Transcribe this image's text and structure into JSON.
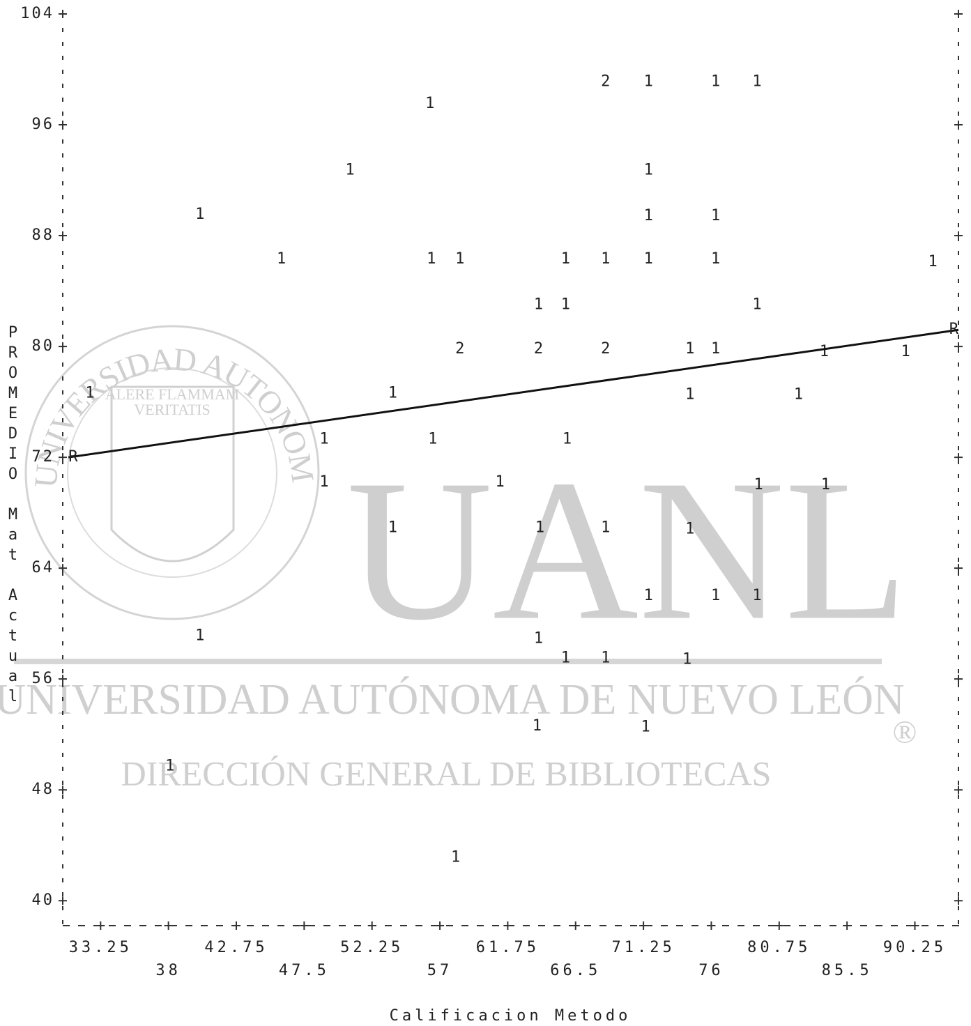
{
  "chart_data": {
    "type": "scatter",
    "x_label": "Calificacion Metodo",
    "y_label": "PROMEDIO Mat Actual",
    "xlim": [
      30.6,
      93.3
    ],
    "ylim": [
      38.2,
      104
    ],
    "xticks": [
      33.25,
      38,
      42.75,
      47.5,
      52.25,
      57,
      61.75,
      66.5,
      71.25,
      76,
      80.75,
      85.5,
      90.25
    ],
    "yticks": [
      40,
      48,
      56,
      64,
      72,
      80,
      88,
      96,
      104
    ],
    "color": "#222222",
    "x": [
      68.6,
      71.6,
      76.3,
      79.2,
      56.3,
      50.7,
      71.6,
      40.2,
      71.6,
      76.3,
      45.9,
      56.4,
      58.4,
      65.8,
      68.6,
      71.6,
      76.3,
      91.5,
      63.9,
      65.8,
      79.2,
      58.4,
      63.9,
      68.6,
      74.5,
      76.3,
      83.9,
      89.6,
      32.5,
      53.7,
      74.5,
      82.1,
      48.9,
      56.5,
      65.9,
      48.9,
      61.2,
      79.3,
      84.0,
      53.7,
      64.0,
      68.6,
      74.5,
      71.6,
      76.3,
      79.2,
      40.2,
      63.9,
      65.8,
      68.6,
      74.3,
      63.8,
      71.4,
      38.1,
      58.1
    ],
    "y": [
      99.1,
      99.1,
      99.1,
      99.1,
      97.5,
      92.7,
      92.7,
      89.5,
      89.4,
      89.4,
      86.3,
      86.3,
      86.3,
      86.3,
      86.3,
      86.3,
      86.3,
      86.1,
      83.0,
      83.0,
      83.0,
      79.8,
      79.8,
      79.8,
      79.8,
      79.8,
      79.6,
      79.6,
      76.6,
      76.6,
      76.5,
      76.5,
      73.3,
      73.3,
      73.3,
      70.2,
      70.2,
      70.0,
      70.0,
      66.9,
      66.9,
      66.9,
      66.8,
      62.0,
      62.0,
      62.0,
      59.1,
      58.9,
      57.5,
      57.5,
      57.4,
      52.6,
      52.5,
      49.7,
      43.1
    ],
    "counts": [
      2,
      1,
      1,
      1,
      1,
      1,
      1,
      1,
      1,
      1,
      1,
      1,
      1,
      1,
      1,
      1,
      1,
      1,
      1,
      1,
      1,
      2,
      2,
      2,
      1,
      1,
      1,
      1,
      1,
      1,
      1,
      1,
      1,
      1,
      1,
      1,
      1,
      1,
      1,
      1,
      1,
      1,
      1,
      1,
      1,
      1,
      1,
      1,
      1,
      1,
      1,
      1,
      1,
      1,
      1
    ],
    "fit_line": {
      "x": [
        31.0,
        93.3
      ],
      "y": [
        72.0,
        81.2
      ],
      "marker": "R",
      "color": "#111111"
    },
    "watermark": {
      "logo": "UANL",
      "university": "UNIVERSIDAD AUTÓNOMA DE NUEVO LEÓN",
      "department": "DIRECCIÓN GENERAL DE BIBLIOTECAS",
      "motto_1": "ALERE FLAMMAM",
      "motto_2": "VERITATIS",
      "seal": "UNIVERSIDAD AUTONOMA DE NUEVO LEON",
      "registered": "®"
    }
  }
}
